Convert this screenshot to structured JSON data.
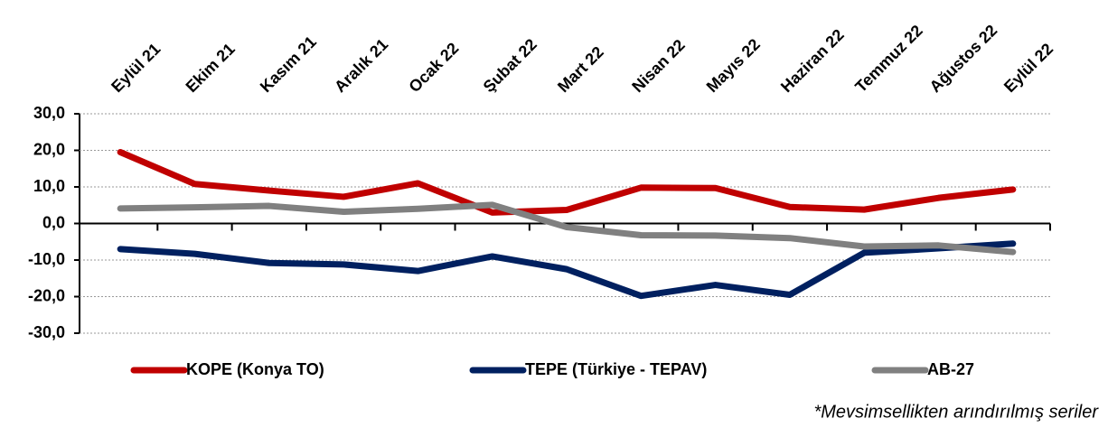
{
  "chart_data": {
    "type": "line",
    "categories": [
      "Eylül 21",
      "Ekim 21",
      "Kasım 21",
      "Aralık 21",
      "Ocak 22",
      "Şubat 22",
      "Mart 22",
      "Nisan 22",
      "Mayıs 22",
      "Haziran 22",
      "Temmuz 22",
      "Ağustos 22",
      "Eylül 22"
    ],
    "series": [
      {
        "name": "KOPE (Konya TO)",
        "color": "#c00000",
        "values": [
          19.5,
          10.8,
          9.0,
          7.3,
          11.0,
          3.0,
          3.7,
          9.8,
          9.7,
          4.5,
          3.8,
          7.0,
          9.3
        ]
      },
      {
        "name": "TEPE (Türkiye - TEPAV)",
        "color": "#002060",
        "values": [
          -7.0,
          -8.3,
          -10.8,
          -11.2,
          -13.0,
          -9.0,
          -12.5,
          -19.8,
          -16.8,
          -19.5,
          -8.0,
          -6.8,
          -5.5
        ]
      },
      {
        "name": "AB-27",
        "color": "#808080",
        "values": [
          4.1,
          4.4,
          4.8,
          3.2,
          4.0,
          5.1,
          -1.0,
          -3.2,
          -3.3,
          -4.0,
          -6.3,
          -6.0,
          -7.8
        ]
      }
    ],
    "ylim": [
      -30,
      30
    ],
    "yticks": [
      {
        "value": -30,
        "label": "-30,0"
      },
      {
        "value": -20,
        "label": "-20,0"
      },
      {
        "value": -10,
        "label": "-10,0"
      },
      {
        "value": 0,
        "label": "0,0"
      },
      {
        "value": 10,
        "label": "10,0"
      },
      {
        "value": 20,
        "label": "20,0"
      },
      {
        "value": 30,
        "label": "30,0"
      }
    ],
    "grid": true,
    "legend": "bottom",
    "note": "*Mevsimsellikten arındırılmış seriler"
  }
}
